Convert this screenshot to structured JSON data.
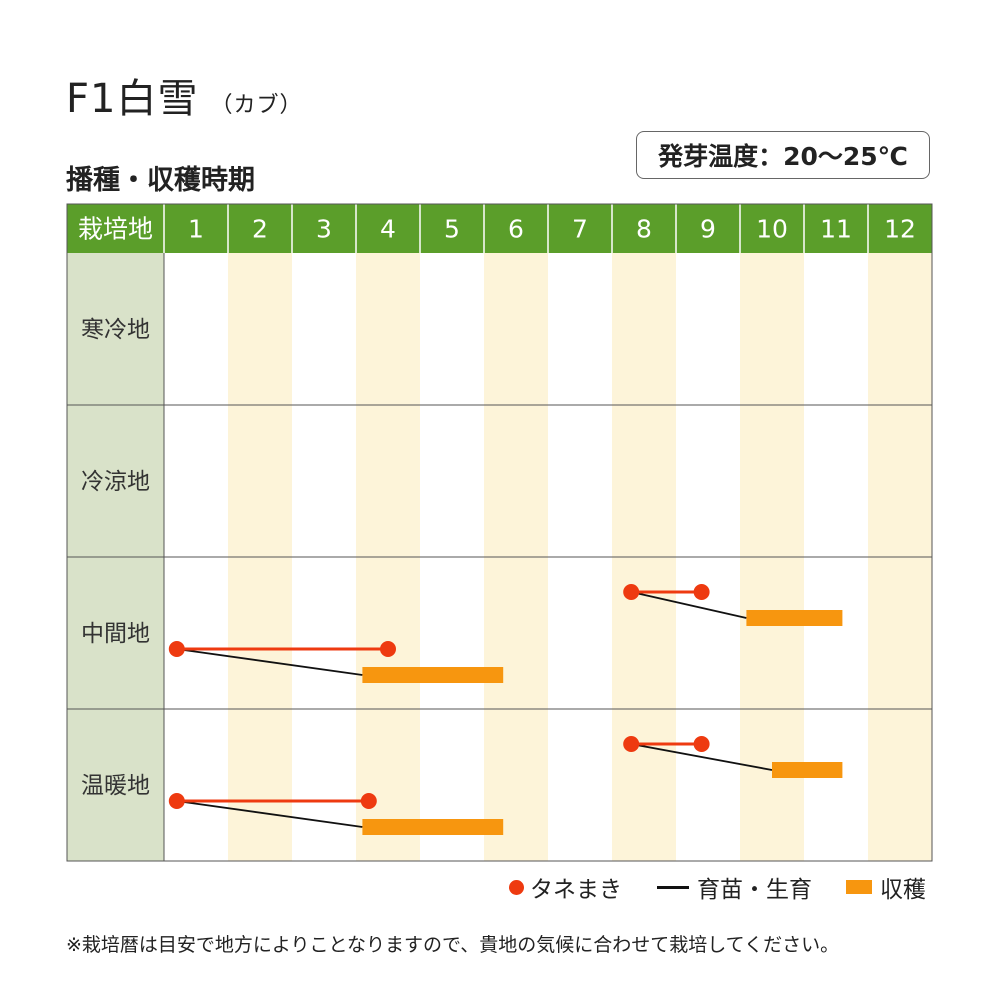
{
  "title": {
    "main": "F1白雪",
    "sub": "（カブ）"
  },
  "section_title": "播種・収穫時期",
  "germination_temp": "発芽温度：20～25℃",
  "colors": {
    "header": "#5b9e2a",
    "region_bg": "#d9e2c9",
    "band": "#fdf4d9",
    "sowing": "#ee3a10",
    "growing": "#111111",
    "harvest": "#f7960f"
  },
  "chart_data": {
    "type": "gantt",
    "header_label": "栽培地",
    "months": [
      "1",
      "2",
      "3",
      "4",
      "5",
      "6",
      "7",
      "8",
      "9",
      "10",
      "11",
      "12"
    ],
    "regions": [
      {
        "name": "寒冷地",
        "schedules": []
      },
      {
        "name": "冷涼地",
        "schedules": []
      },
      {
        "name": "中間地",
        "schedules": [
          {
            "sowing": [
              8.3,
              9.4
            ],
            "harvest": [
              10.1,
              11.6
            ]
          },
          {
            "sowing": [
              1.2,
              4.5
            ],
            "harvest": [
              4.1,
              6.3
            ]
          }
        ]
      },
      {
        "name": "温暖地",
        "schedules": [
          {
            "sowing": [
              8.3,
              9.4
            ],
            "harvest": [
              10.5,
              11.6
            ]
          },
          {
            "sowing": [
              1.2,
              4.2
            ],
            "harvest": [
              4.1,
              6.3
            ]
          }
        ]
      }
    ]
  },
  "legend": {
    "sowing": "タネまき",
    "growing": "育苗・生育",
    "harvest": "収穫"
  },
  "note": "※栽培暦は目安で地方によりことなりますので、貴地の気候に合わせて栽培してください。"
}
